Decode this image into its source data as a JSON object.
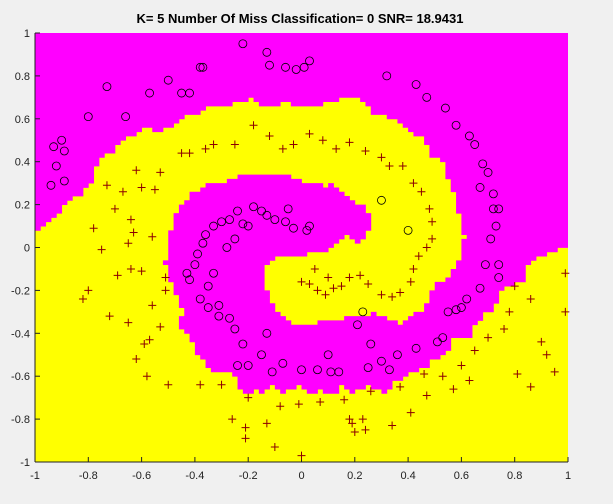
{
  "chart_data": {
    "type": "scatter",
    "title": "K= 5  Number Of Miss Classification= 0 SNR= 18.9431",
    "xlabel": "",
    "ylabel": "",
    "xlim": [
      -1,
      1
    ],
    "ylim": [
      -1,
      1
    ],
    "x_ticks": [
      -1,
      -0.8,
      -0.6,
      -0.4,
      -0.2,
      0,
      0.2,
      0.4,
      0.6,
      0.8,
      1
    ],
    "x_tick_labels": [
      "-1",
      "-0.8",
      "-0.6",
      "-0.4",
      "-0.2",
      "0",
      "0.2",
      "0.4",
      "0.6",
      "0.8",
      "1"
    ],
    "y_ticks": [
      1,
      0.8,
      0.6,
      0.4,
      0.2,
      0,
      -0.2,
      -0.4,
      -0.6,
      -0.8,
      -1
    ],
    "y_tick_labels": [
      "1",
      "0.8",
      "0.6",
      "0.4",
      "0.2",
      "0",
      "-0.2",
      "-0.4",
      "-0.6",
      "-0.8",
      "-1"
    ],
    "grid": false,
    "background_regions": {
      "class_circle_color": "#ff00ff",
      "class_plus_color": "#ffff00"
    },
    "series": [
      {
        "marker": "circle",
        "color": "#000000",
        "points": [
          [
            -0.22,
            0.95
          ],
          [
            -0.13,
            0.91
          ],
          [
            -0.12,
            0.85
          ],
          [
            -0.06,
            0.84
          ],
          [
            -0.02,
            0.83
          ],
          [
            0.01,
            0.84
          ],
          [
            0.03,
            0.87
          ],
          [
            -0.38,
            0.84
          ],
          [
            -0.37,
            0.84
          ],
          [
            -0.5,
            0.78
          ],
          [
            -0.57,
            0.72
          ],
          [
            -0.73,
            0.75
          ],
          [
            -0.45,
            0.72
          ],
          [
            -0.42,
            0.72
          ],
          [
            -0.8,
            0.61
          ],
          [
            -0.66,
            0.61
          ],
          [
            -0.9,
            0.5
          ],
          [
            -0.93,
            0.47
          ],
          [
            -0.89,
            0.45
          ],
          [
            -0.92,
            0.38
          ],
          [
            -0.89,
            0.31
          ],
          [
            -0.94,
            0.29
          ],
          [
            0.32,
            0.8
          ],
          [
            0.43,
            0.76
          ],
          [
            0.47,
            0.7
          ],
          [
            0.54,
            0.65
          ],
          [
            0.58,
            0.57
          ],
          [
            0.63,
            0.52
          ],
          [
            0.65,
            0.48
          ],
          [
            0.68,
            0.39
          ],
          [
            0.7,
            0.35
          ],
          [
            0.67,
            0.28
          ],
          [
            0.72,
            0.25
          ],
          [
            0.72,
            0.18
          ],
          [
            0.74,
            0.18
          ],
          [
            0.73,
            0.1
          ],
          [
            0.71,
            0.04
          ],
          [
            0.69,
            -0.08
          ],
          [
            0.74,
            -0.08
          ],
          [
            0.74,
            -0.14
          ],
          [
            0.67,
            -0.19
          ],
          [
            0.62,
            -0.24
          ],
          [
            0.6,
            -0.28
          ],
          [
            0.58,
            -0.29
          ],
          [
            0.55,
            -0.3
          ],
          [
            0.53,
            -0.42
          ],
          [
            0.51,
            -0.44
          ],
          [
            0.43,
            -0.47
          ],
          [
            0.36,
            -0.5
          ],
          [
            0.33,
            -0.57
          ],
          [
            0.3,
            -0.53
          ],
          [
            0.25,
            -0.56
          ],
          [
            0.14,
            -0.58
          ],
          [
            0.11,
            -0.58
          ],
          [
            0.06,
            -0.57
          ],
          [
            0.0,
            -0.57
          ],
          [
            -0.07,
            -0.54
          ],
          [
            -0.11,
            -0.58
          ],
          [
            -0.15,
            -0.5
          ],
          [
            -0.2,
            -0.55
          ],
          [
            -0.24,
            -0.55
          ],
          [
            -0.22,
            -0.45
          ],
          [
            -0.25,
            -0.38
          ],
          [
            -0.27,
            -0.33
          ],
          [
            -0.31,
            -0.32
          ],
          [
            -0.35,
            -0.28
          ],
          [
            -0.38,
            -0.24
          ],
          [
            -0.42,
            -0.15
          ],
          [
            -0.43,
            -0.12
          ],
          [
            -0.4,
            -0.08
          ],
          [
            -0.39,
            -0.03
          ],
          [
            -0.37,
            0.02
          ],
          [
            -0.36,
            0.06
          ],
          [
            -0.33,
            0.1
          ],
          [
            -0.3,
            0.12
          ],
          [
            -0.27,
            0.13
          ],
          [
            -0.24,
            0.17
          ],
          [
            -0.18,
            0.19
          ],
          [
            -0.15,
            0.17
          ],
          [
            -0.13,
            0.15
          ],
          [
            -0.1,
            0.13
          ],
          [
            -0.06,
            0.12
          ],
          [
            -0.03,
            0.09
          ],
          [
            0.02,
            0.08
          ],
          [
            0.03,
            0.1
          ],
          [
            -0.22,
            0.11
          ],
          [
            -0.2,
            0.1
          ],
          [
            -0.05,
            0.18
          ],
          [
            -0.28,
            0.0
          ],
          [
            -0.25,
            0.04
          ],
          [
            -0.33,
            -0.12
          ],
          [
            -0.35,
            -0.18
          ],
          [
            -0.31,
            -0.27
          ],
          [
            0.23,
            -0.3
          ],
          [
            0.21,
            -0.36
          ],
          [
            0.26,
            -0.45
          ],
          [
            0.1,
            -0.5
          ],
          [
            -0.13,
            -0.4
          ],
          [
            0.3,
            0.22
          ],
          [
            0.4,
            0.08
          ]
        ]
      },
      {
        "marker": "plus",
        "color": "#8b0000",
        "points": [
          [
            -0.42,
            0.44
          ],
          [
            -0.45,
            0.44
          ],
          [
            -0.36,
            0.46
          ],
          [
            -0.33,
            0.48
          ],
          [
            -0.25,
            0.48
          ],
          [
            -0.18,
            0.57
          ],
          [
            -0.12,
            0.52
          ],
          [
            -0.07,
            0.46
          ],
          [
            -0.03,
            0.48
          ],
          [
            0.03,
            0.53
          ],
          [
            0.08,
            0.5
          ],
          [
            0.13,
            0.46
          ],
          [
            0.18,
            0.49
          ],
          [
            0.24,
            0.45
          ],
          [
            0.3,
            0.42
          ],
          [
            0.33,
            0.38
          ],
          [
            0.38,
            0.38
          ],
          [
            0.42,
            0.3
          ],
          [
            0.45,
            0.26
          ],
          [
            0.48,
            0.18
          ],
          [
            0.49,
            0.12
          ],
          [
            0.49,
            0.04
          ],
          [
            0.47,
            0.0
          ],
          [
            0.44,
            -0.04
          ],
          [
            0.42,
            -0.1
          ],
          [
            0.41,
            -0.16
          ],
          [
            0.37,
            -0.21
          ],
          [
            0.34,
            -0.23
          ],
          [
            0.3,
            -0.22
          ],
          [
            0.25,
            -0.17
          ],
          [
            0.22,
            -0.13
          ],
          [
            0.18,
            -0.14
          ],
          [
            0.15,
            -0.18
          ],
          [
            0.12,
            -0.19
          ],
          [
            0.09,
            -0.22
          ],
          [
            0.06,
            -0.2
          ],
          [
            0.03,
            -0.17
          ],
          [
            0.0,
            -0.16
          ],
          [
            0.05,
            -0.1
          ],
          [
            0.1,
            -0.14
          ],
          [
            -0.53,
            0.35
          ],
          [
            -0.62,
            0.36
          ],
          [
            -0.55,
            0.27
          ],
          [
            -0.6,
            0.28
          ],
          [
            -0.67,
            0.26
          ],
          [
            -0.73,
            0.29
          ],
          [
            -0.7,
            0.18
          ],
          [
            -0.64,
            0.13
          ],
          [
            -0.78,
            0.09
          ],
          [
            -0.63,
            0.07
          ],
          [
            -0.56,
            0.05
          ],
          [
            -0.65,
            0.02
          ],
          [
            -0.75,
            -0.01
          ],
          [
            -0.64,
            -0.1
          ],
          [
            -0.69,
            -0.13
          ],
          [
            -0.6,
            -0.11
          ],
          [
            -0.51,
            -0.14
          ],
          [
            -0.51,
            -0.2
          ],
          [
            -0.56,
            -0.27
          ],
          [
            -0.53,
            -0.37
          ],
          [
            -0.72,
            -0.32
          ],
          [
            -0.8,
            -0.2
          ],
          [
            -0.82,
            -0.24
          ],
          [
            -0.65,
            -0.35
          ],
          [
            -0.59,
            -0.45
          ],
          [
            -0.62,
            -0.52
          ],
          [
            -0.58,
            -0.6
          ],
          [
            -0.5,
            -0.64
          ],
          [
            -0.38,
            -0.64
          ],
          [
            -0.3,
            -0.64
          ],
          [
            -0.2,
            -0.7
          ],
          [
            -0.08,
            -0.74
          ],
          [
            -0.01,
            -0.73
          ],
          [
            0.07,
            -0.72
          ],
          [
            0.16,
            -0.71
          ],
          [
            0.26,
            -0.67
          ],
          [
            0.37,
            -0.65
          ],
          [
            0.46,
            -0.59
          ],
          [
            0.53,
            -0.6
          ],
          [
            0.6,
            -0.55
          ],
          [
            0.65,
            -0.48
          ],
          [
            0.7,
            -0.42
          ],
          [
            0.76,
            -0.38
          ],
          [
            0.78,
            -0.3
          ],
          [
            0.8,
            -0.18
          ],
          [
            0.86,
            -0.24
          ],
          [
            0.9,
            -0.44
          ],
          [
            0.92,
            -0.5
          ],
          [
            0.95,
            -0.58
          ],
          [
            0.99,
            -0.3
          ],
          [
            0.99,
            -0.12
          ],
          [
            0.86,
            -0.65
          ],
          [
            0.81,
            -0.59
          ],
          [
            0.63,
            -0.62
          ],
          [
            0.57,
            -0.66
          ],
          [
            0.47,
            -0.69
          ],
          [
            0.19,
            -0.82
          ],
          [
            0.2,
            -0.86
          ],
          [
            0.24,
            -0.85
          ],
          [
            0.34,
            -0.83
          ],
          [
            0.41,
            -0.77
          ],
          [
            -0.21,
            -0.89
          ],
          [
            -0.21,
            -0.84
          ],
          [
            -0.26,
            -0.8
          ],
          [
            -0.13,
            -0.82
          ],
          [
            -0.1,
            -0.93
          ],
          [
            0.0,
            -0.97
          ],
          [
            0.18,
            -0.8
          ],
          [
            0.23,
            -0.8
          ],
          [
            -0.57,
            -0.43
          ]
        ]
      }
    ]
  }
}
